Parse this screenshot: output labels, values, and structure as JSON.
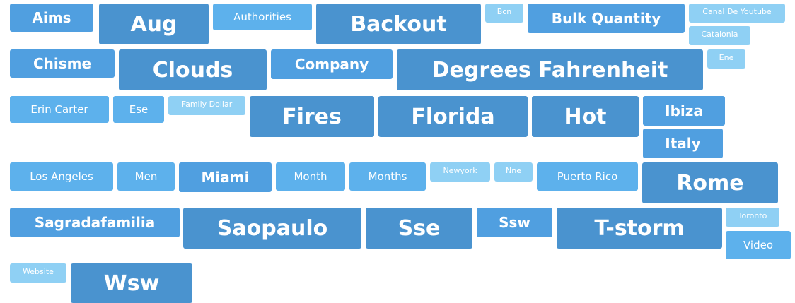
{
  "tags": [
    "Aims",
    "Aug",
    "Authorities",
    "Backout",
    "Bcn",
    "Bulk Quantity",
    "Canal De Youtube",
    "Catalonia",
    "Chisme",
    "Clouds",
    "Company",
    "Degrees Fahrenheit",
    "Ene",
    "Erin Carter",
    "Ese",
    "Family Dollar",
    "Fires",
    "Florida",
    "Hot",
    "Ibiza",
    "Italy",
    "Los Angeles",
    "Men",
    "Miami",
    "Month",
    "Months",
    "Newyork",
    "Nne",
    "Puerto Rico",
    "Rome",
    "Sagradafamilia",
    "Saopaulo",
    "Sse",
    "Ssw",
    "T-storm",
    "Toronto",
    "Video",
    "Website",
    "Wsw"
  ]
}
